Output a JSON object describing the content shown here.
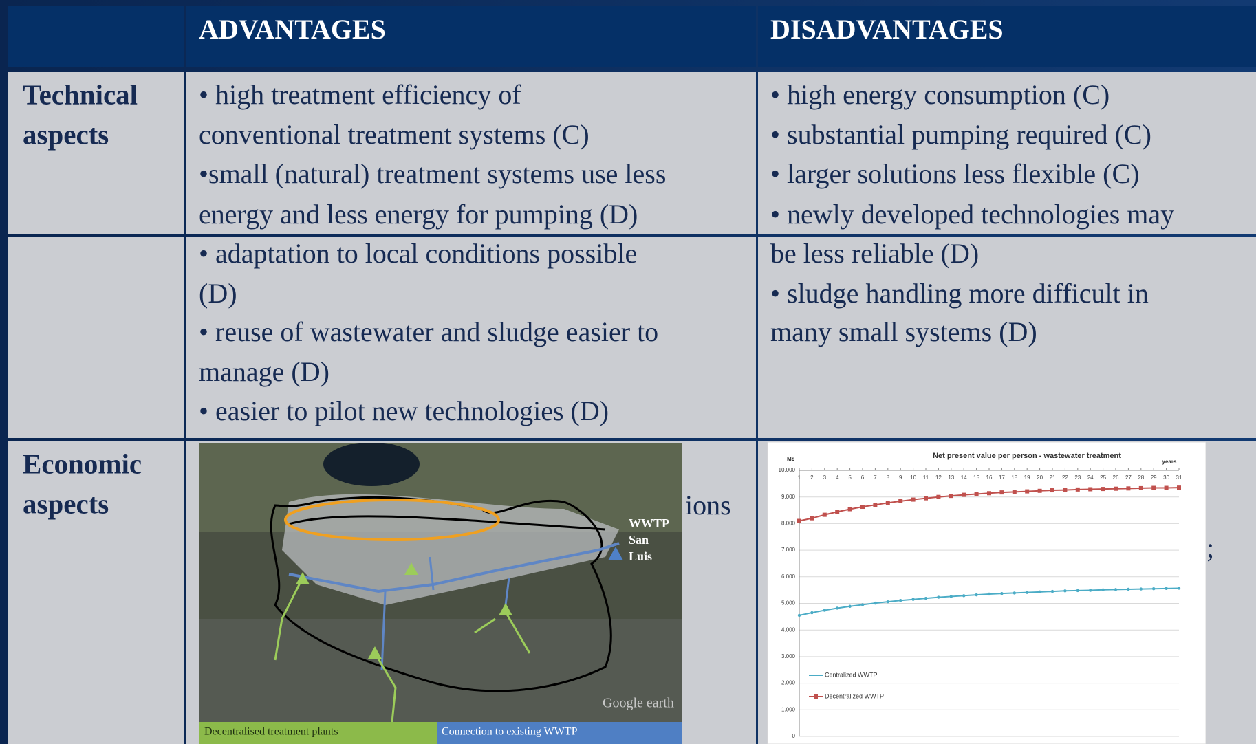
{
  "table": {
    "headers": [
      "ADVANTAGES",
      "DISADVANTAGES"
    ],
    "technical": {
      "label_lines": [
        "Technical",
        "aspects"
      ],
      "advantages_lines": [
        "• high treatment efficiency of",
        "conventional treatment systems (C)",
        "•small (natural) treatment systems use less",
        "energy and less energy for pumping (D)",
        "• adaptation to local conditions possible",
        "(D)",
        "• reuse of wastewater and sludge easier to",
        "manage (D)",
        "• easier to pilot new technologies (D)"
      ],
      "disadvantages_lines": [
        "• high energy consumption (C)",
        "• substantial pumping required (C)",
        "• larger solutions less flexible (C)",
        "• newly developed technologies may",
        "be less reliable (D)",
        "• sludge handling more difficult in",
        "many small systems (D)"
      ]
    },
    "economic": {
      "label_lines": [
        "Economic",
        "aspects"
      ],
      "advantages_fragment": "ions",
      "disadvantages_fragment": ";"
    }
  },
  "map": {
    "labels": [
      "WWTP",
      "San",
      "Luis"
    ],
    "watermark": "Google earth",
    "legend": [
      "Decentralised treatment plants",
      "Connection to existing WWTP"
    ]
  },
  "chart": {
    "type": "line",
    "title": "Net present value per person - wastewater treatment",
    "y_unit": "M$",
    "x_unit": "years",
    "x": [
      1,
      2,
      3,
      4,
      5,
      6,
      7,
      8,
      9,
      10,
      11,
      12,
      13,
      14,
      15,
      16,
      17,
      18,
      19,
      20,
      21,
      22,
      23,
      24,
      25,
      26,
      27,
      28,
      29,
      30,
      31
    ],
    "xlim": [
      1,
      31
    ],
    "xticks": [
      1,
      2,
      3,
      4,
      5,
      6,
      7,
      8,
      9,
      10,
      11,
      12,
      13,
      14,
      15,
      16,
      17,
      18,
      19,
      20,
      21,
      22,
      23,
      24,
      25,
      26,
      27,
      28,
      29,
      30,
      31
    ],
    "ylim": [
      0,
      10000
    ],
    "yticks": [
      0,
      {
        "value": 1000,
        "label": "1.000"
      },
      {
        "value": 2000,
        "label": "2.000"
      },
      {
        "value": 3000,
        "label": "3.000"
      },
      {
        "value": 4000,
        "label": "4.000"
      },
      {
        "value": 5000,
        "label": "5.000"
      },
      {
        "value": 6000,
        "label": "6.000"
      },
      {
        "value": 7000,
        "label": "7.000"
      },
      {
        "value": 8000,
        "label": "8.000"
      },
      {
        "value": 9000,
        "label": "9.000"
      },
      {
        "value": 10000,
        "label": "10.000"
      }
    ],
    "grid": true,
    "series": [
      {
        "name": "Centralized WWTP",
        "color": "#4bacc6",
        "values": [
          4550,
          4650,
          4740,
          4820,
          4890,
          4950,
          5010,
          5060,
          5110,
          5150,
          5190,
          5230,
          5260,
          5290,
          5320,
          5350,
          5370,
          5390,
          5410,
          5430,
          5450,
          5470,
          5480,
          5490,
          5510,
          5520,
          5530,
          5540,
          5550,
          5560,
          5570
        ]
      },
      {
        "name": "Decentralized WWTP",
        "color": "#c0504d",
        "values": [
          8100,
          8200,
          8330,
          8440,
          8540,
          8630,
          8700,
          8780,
          8840,
          8900,
          8950,
          9000,
          9040,
          9080,
          9110,
          9140,
          9170,
          9190,
          9210,
          9230,
          9250,
          9260,
          9280,
          9290,
          9300,
          9310,
          9320,
          9330,
          9340,
          9340,
          9350
        ]
      }
    ]
  }
}
